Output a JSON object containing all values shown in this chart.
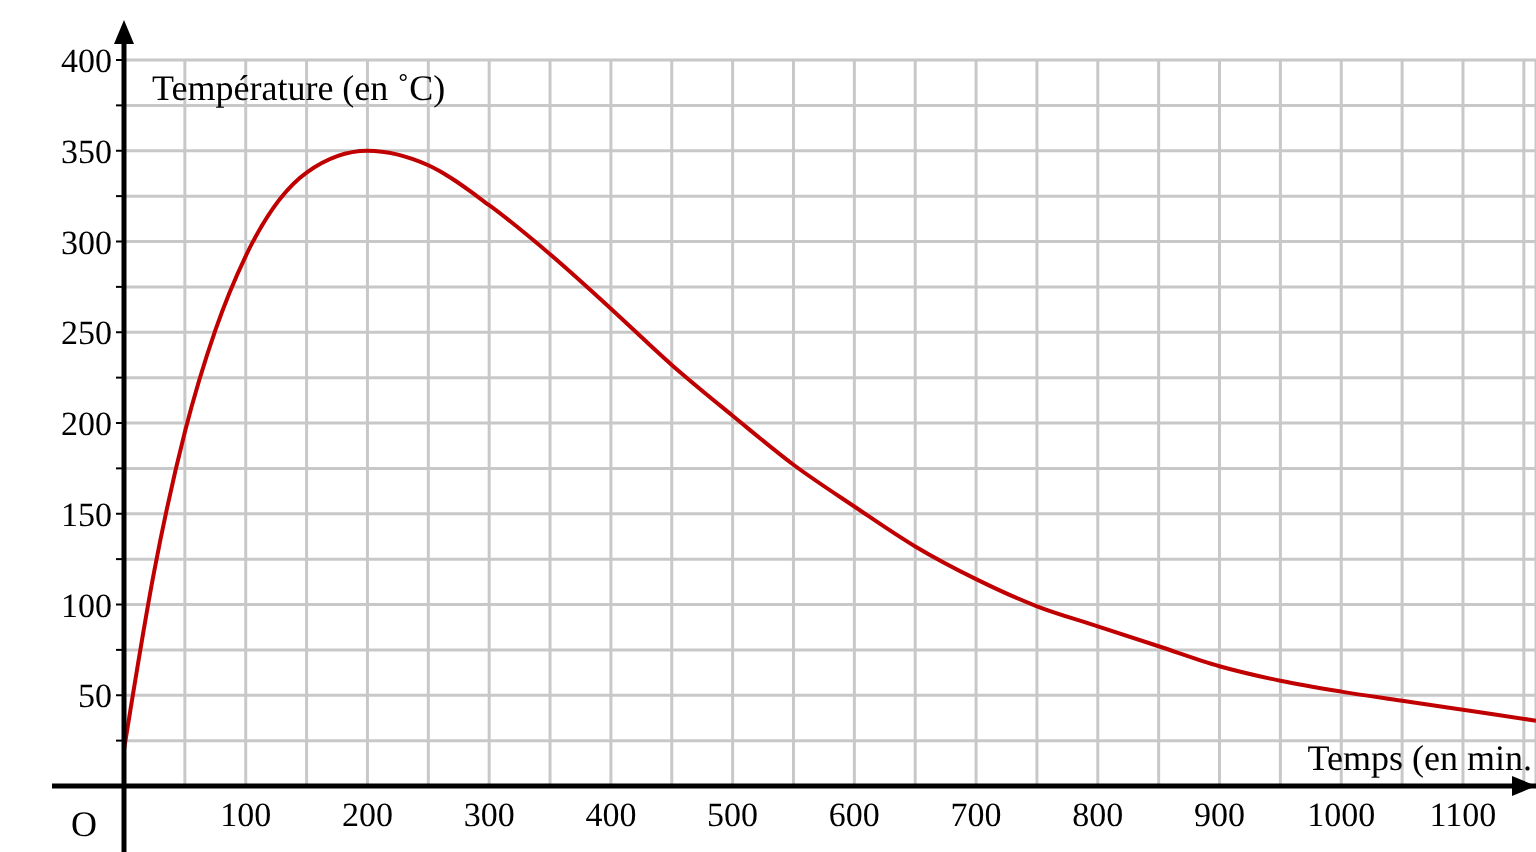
{
  "chart_data": {
    "type": "line",
    "xlabel": "Temps (en min.",
    "ylabel": "Température (en ˚C)",
    "annotations": [
      "O"
    ],
    "x": [
      0,
      25,
      50,
      75,
      100,
      150,
      200,
      250,
      300,
      350,
      400,
      450,
      500,
      550,
      600,
      650,
      700,
      750,
      800,
      850,
      900,
      950,
      1000,
      1050,
      1100,
      1160
    ],
    "series": [
      {
        "color": "#c00000",
        "values": [
          20,
          119,
          195,
          251,
          292,
          338,
          350,
          342,
          320,
          293,
          263,
          232,
          204,
          177,
          154,
          132,
          114,
          99,
          88,
          77,
          66,
          58,
          52,
          47,
          42,
          36
        ]
      }
    ],
    "xlim": [
      0,
      1160
    ],
    "ylim": [
      0,
      400
    ],
    "xticks": [
      {
        "value": 50,
        "label": null
      },
      100,
      {
        "value": 150,
        "label": null
      },
      200,
      {
        "value": 250,
        "label": null
      },
      300,
      {
        "value": 350,
        "label": null
      },
      400,
      {
        "value": 450,
        "label": null
      },
      500,
      {
        "value": 550,
        "label": null
      },
      600,
      {
        "value": 650,
        "label": null
      },
      700,
      {
        "value": 750,
        "label": null
      },
      800,
      {
        "value": 850,
        "label": null
      },
      900,
      {
        "value": 950,
        "label": null
      },
      1000,
      {
        "value": 1050,
        "label": null
      },
      1100,
      {
        "value": 1150,
        "label": null
      }
    ],
    "yticks": [
      {
        "value": 25,
        "label": null
      },
      50,
      {
        "value": 75,
        "label": null
      },
      100,
      {
        "value": 125,
        "label": null
      },
      150,
      {
        "value": 175,
        "label": null
      },
      200,
      {
        "value": 225,
        "label": null
      },
      250,
      {
        "value": 275,
        "label": null
      },
      300,
      {
        "value": 325,
        "label": null
      },
      350,
      {
        "value": 375,
        "label": null
      },
      400
    ],
    "grid": true,
    "marker": "none",
    "line_style": "solid"
  }
}
